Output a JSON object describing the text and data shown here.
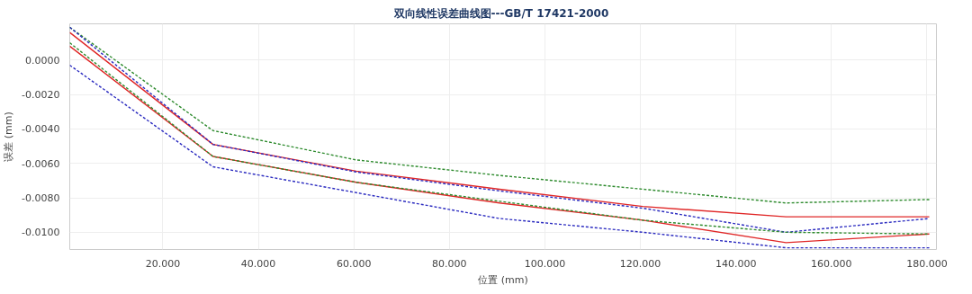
{
  "chart_data": {
    "type": "line",
    "title": "双向线性误差曲线图---GB/T  17421-2000",
    "xlabel": "位置 (mm)",
    "ylabel": "误差 (mm)",
    "x": [
      0.5,
      30.5,
      60.5,
      90.5,
      120.5,
      150.5,
      180.5
    ],
    "xlim": [
      0.5,
      182
    ],
    "ylim": [
      -0.011,
      0.0021
    ],
    "xticks": [
      {
        "value": 20,
        "label": "20.000"
      },
      {
        "value": 40,
        "label": "40.000"
      },
      {
        "value": 60,
        "label": "60.000"
      },
      {
        "value": 80,
        "label": "80.000"
      },
      {
        "value": 100,
        "label": "100.000"
      },
      {
        "value": 120,
        "label": "120.000"
      },
      {
        "value": 140,
        "label": "140.000"
      },
      {
        "value": 160,
        "label": "160.000"
      },
      {
        "value": 180,
        "label": "180.000"
      }
    ],
    "yticks": [
      {
        "value": 0,
        "label": "0.0000"
      },
      {
        "value": -0.002,
        "label": "-0.0020"
      },
      {
        "value": -0.004,
        "label": "-0.0040"
      },
      {
        "value": -0.006,
        "label": "-0.0060"
      },
      {
        "value": -0.008,
        "label": "-0.0080"
      },
      {
        "value": -0.01,
        "label": "-0.0100"
      }
    ],
    "grid": true,
    "marker": "none",
    "series": [
      {
        "color": "#2e8b2e",
        "line_style": "dashed",
        "values": [
          0.0019,
          -0.0041,
          -0.0058,
          -0.0067,
          -0.0075,
          -0.0083,
          -0.0081
        ]
      },
      {
        "color": "#e02828",
        "line_style": "solid",
        "values": [
          0.0016,
          -0.0049,
          -0.00645,
          -0.0075,
          -0.0085,
          -0.0091,
          -0.0091
        ]
      },
      {
        "color": "#2c2cc0",
        "line_style": "dashed",
        "values": [
          0.0019,
          -0.0049,
          -0.0065,
          -0.0076,
          -0.0086,
          -0.01,
          -0.0092
        ]
      },
      {
        "color": "#2e8b2e",
        "line_style": "dashed",
        "values": [
          0.001,
          -0.0056,
          -0.0071,
          -0.0082,
          -0.0093,
          -0.01,
          -0.0101
        ]
      },
      {
        "color": "#e02828",
        "line_style": "solid",
        "values": [
          0.0008,
          -0.0056,
          -0.0071,
          -0.0083,
          -0.0093,
          -0.0106,
          -0.0101
        ]
      },
      {
        "color": "#2c2cc0",
        "line_style": "dashed",
        "values": [
          -0.0003,
          -0.0062,
          -0.0077,
          -0.0092,
          -0.01,
          -0.0109,
          -0.0109
        ]
      }
    ]
  }
}
